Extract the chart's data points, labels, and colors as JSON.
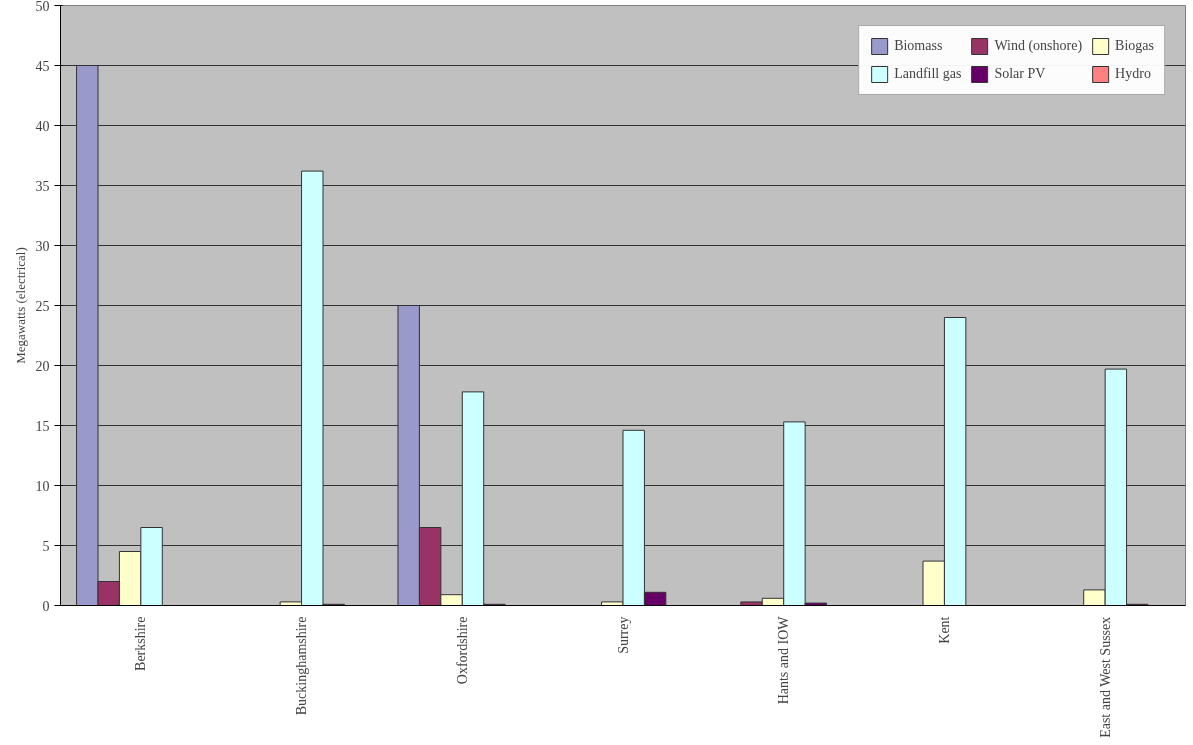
{
  "chart_data": {
    "type": "bar",
    "ylabel": "Megawatts (electrical)",
    "categories": [
      "Berkshire",
      "Buckinghamshire",
      "Oxfordshire",
      "Surrey",
      "Hants and IOW",
      "Kent",
      "East and West Sussex"
    ],
    "series": [
      {
        "name": "Biomass",
        "color": "#9999cc",
        "values": [
          45,
          null,
          25,
          null,
          null,
          null,
          null
        ]
      },
      {
        "name": "Wind (onshore)",
        "color": "#993366",
        "values": [
          2,
          null,
          6.5,
          null,
          0.3,
          null,
          null
        ]
      },
      {
        "name": "Biogas",
        "color": "#ffffcc",
        "values": [
          4.5,
          0.3,
          0.9,
          0.3,
          0.6,
          3.7,
          1.3
        ]
      },
      {
        "name": "Landfill gas",
        "color": "#ccffff",
        "values": [
          6.5,
          36.2,
          17.8,
          14.6,
          15.3,
          24,
          19.7
        ]
      },
      {
        "name": "Solar PV",
        "color": "#660066",
        "values": [
          null,
          0.1,
          0.1,
          1.1,
          0.2,
          null,
          0.1
        ]
      },
      {
        "name": "Hydro",
        "color": "#ff8080",
        "values": [
          null,
          null,
          null,
          null,
          null,
          null,
          null
        ]
      }
    ],
    "ylim": [
      0,
      50
    ],
    "yticks": [
      0,
      5,
      10,
      15,
      20,
      25,
      30,
      35,
      40,
      45,
      50
    ],
    "grid": "y",
    "legend": "top right"
  }
}
